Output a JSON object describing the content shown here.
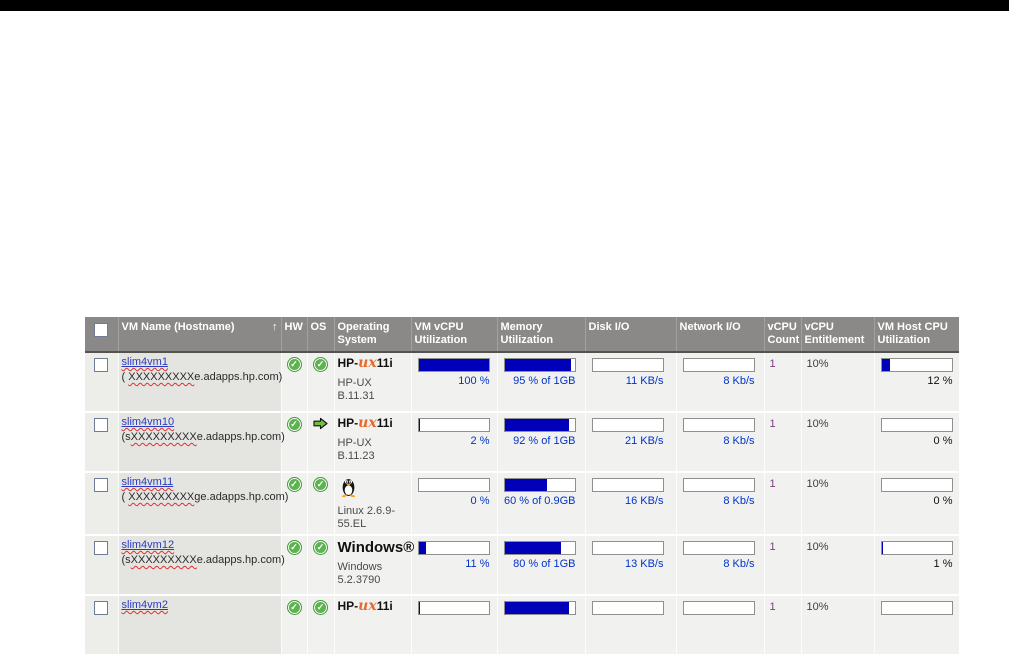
{
  "icons": {
    "check": "✓",
    "sort_asc": "↑"
  },
  "logos": {
    "hpux_hp": "HP-",
    "hpux_ux": "ux",
    "hpux_11i": "11i",
    "windows": "Windows®"
  },
  "colors": {
    "header_bg": "#8b8987",
    "bar_fill": "#0000b8",
    "bar_label": "#0033cc",
    "row_bg": "#f1f1ef",
    "name_cell_bg": "#e4e4e1",
    "status_ok_green": "#5cb350",
    "link_blue": "#2b3cbe",
    "topbar": "#000000"
  },
  "table": {
    "columns": [
      {
        "label": ""
      },
      {
        "label": "VM Name (Hostname)",
        "sort": "↑"
      },
      {
        "label": "HW"
      },
      {
        "label": "OS"
      },
      {
        "label": "Operating System"
      },
      {
        "label": "VM vCPU Utilization"
      },
      {
        "label": "Memory Utilization"
      },
      {
        "label": "Disk I/O"
      },
      {
        "label": "Network I/O"
      },
      {
        "label": "vCPU Count"
      },
      {
        "label": "vCPU Entitlement"
      },
      {
        "label": "VM Host CPU Utilization"
      }
    ],
    "rows": [
      {
        "name": "slim4vm1",
        "host_pre": "( ",
        "host_x": "XXXXXXXXX",
        "host_post": "e.adapps.hp.com)",
        "hw": "ok",
        "os": "ok",
        "os_logo": "hpux",
        "os_line1": "HP-UX",
        "os_line2": "B.11.31",
        "vcpu_pct": 100,
        "vcpu_label": "100 %",
        "mem_pct": 95,
        "mem_label": "95 % of 1GB",
        "disk_label": "11 KB/s",
        "net_label": "8 Kb/s",
        "vcpu_count": "1",
        "entitlement": "10%",
        "host_pct": 12,
        "host_label": "12 %"
      },
      {
        "name": "slim4vm10",
        "host_pre": "(s",
        "host_x": "XXXXXXXXX",
        "host_post": "e.adapps.hp.com)",
        "hw": "ok",
        "os": "arrow",
        "os_logo": "hpux",
        "os_line1": "HP-UX",
        "os_line2": "B.11.23",
        "vcpu_pct": 2,
        "vcpu_label": "2 %",
        "mem_pct": 92,
        "mem_label": "92 % of 1GB",
        "disk_label": "21 KB/s",
        "net_label": "8 Kb/s",
        "vcpu_count": "1",
        "entitlement": "10%",
        "host_pct": 0,
        "host_label": "0 %"
      },
      {
        "name": "slim4vm11",
        "host_pre": "( ",
        "host_x": "XXXXXXXXX",
        "host_post": "ge.adapps.hp.com)",
        "hw": "ok",
        "os": "ok",
        "os_logo": "linux",
        "os_line1": "Linux 2.6.9-",
        "os_line2": "55.EL",
        "vcpu_pct": 0,
        "vcpu_label": "0 %",
        "mem_pct": 60,
        "mem_label": "60 % of 0.9GB",
        "disk_label": "16 KB/s",
        "net_label": "8 Kb/s",
        "vcpu_count": "1",
        "entitlement": "10%",
        "host_pct": 0,
        "host_label": "0 %"
      },
      {
        "name": "slim4vm12",
        "host_pre": "(s",
        "host_x": "XXXXXXXXX",
        "host_post": "e.adapps.hp.com)",
        "hw": "ok",
        "os": "ok",
        "os_logo": "windows",
        "os_line1": "Windows",
        "os_line2": "5.2.3790",
        "vcpu_pct": 11,
        "vcpu_label": "11 %",
        "mem_pct": 80,
        "mem_label": "80 % of 1GB",
        "disk_label": "13 KB/s",
        "net_label": "8 Kb/s",
        "vcpu_count": "1",
        "entitlement": "10%",
        "host_pct": 1,
        "host_label": "1 %"
      },
      {
        "name": "slim4vm2",
        "host_pre": "",
        "host_x": "",
        "host_post": "",
        "hw": "ok",
        "os": "ok",
        "os_logo": "hpux",
        "os_line1": "",
        "os_line2": "",
        "vcpu_pct": 2,
        "vcpu_label": "",
        "mem_pct": 92,
        "mem_label": "",
        "disk_label": "",
        "net_label": "",
        "vcpu_count": "1",
        "entitlement": "10%",
        "host_pct": 0,
        "host_label": ""
      }
    ]
  }
}
